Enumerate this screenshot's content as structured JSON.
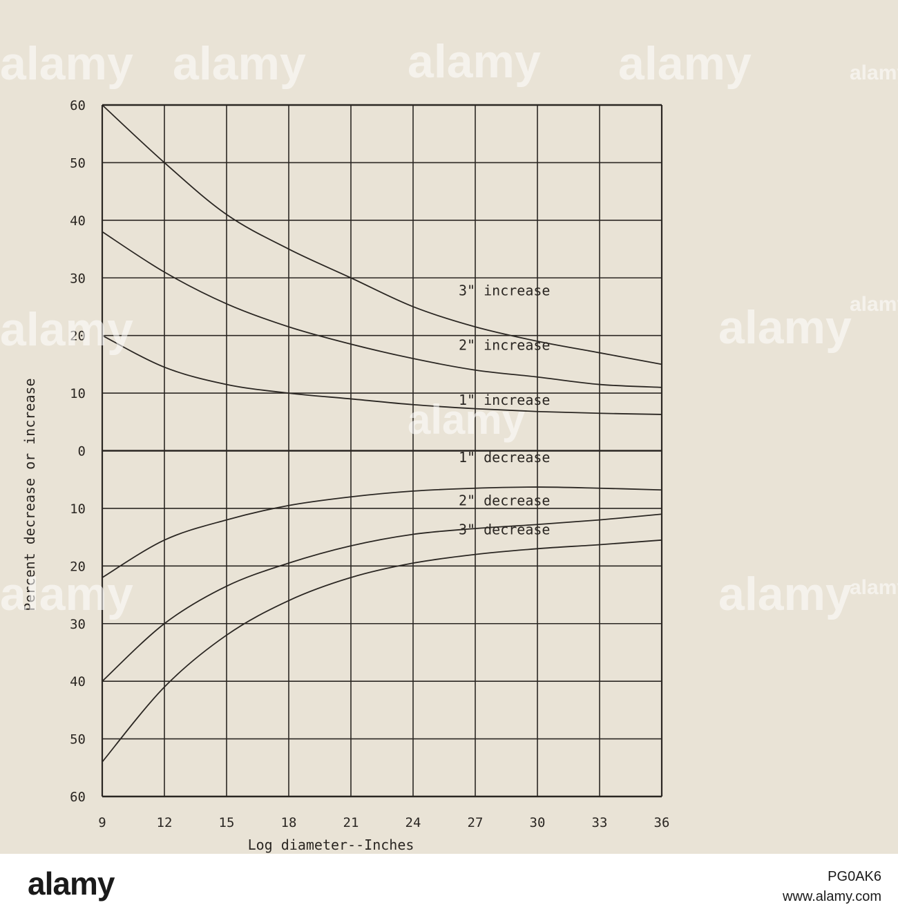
{
  "chart_data": {
    "type": "line",
    "xlabel": "Log diameter--Inches",
    "ylabel": "Percent decrease or increase",
    "x_ticks": [
      "9",
      "12",
      "15",
      "18",
      "21",
      "24",
      "27",
      "30",
      "33",
      "36"
    ],
    "y_ticks_upper": [
      "60",
      "50",
      "40",
      "30",
      "20",
      "10",
      "0"
    ],
    "y_ticks_lower": [
      "10",
      "20",
      "30",
      "40",
      "50",
      "60"
    ],
    "xlim": [
      9,
      36
    ],
    "ylim": [
      -60,
      60
    ],
    "grid": true,
    "series": [
      {
        "name": "3\" increase",
        "x": [
          9,
          12,
          15,
          18,
          21,
          24,
          27,
          30,
          33,
          36
        ],
        "y": [
          60,
          50,
          41,
          35,
          30,
          25,
          21.5,
          19,
          17,
          15
        ]
      },
      {
        "name": "2\" increase",
        "x": [
          9,
          12,
          15,
          18,
          21,
          24,
          27,
          30,
          33,
          36
        ],
        "y": [
          38,
          31,
          25.5,
          21.5,
          18.5,
          16,
          14,
          12.8,
          11.5,
          11
        ]
      },
      {
        "name": "1\" increase",
        "x": [
          9,
          12,
          15,
          18,
          21,
          24,
          27,
          30,
          33,
          36
        ],
        "y": [
          20,
          14.5,
          11.5,
          10,
          9,
          8,
          7.3,
          6.8,
          6.5,
          6.3
        ]
      },
      {
        "name": "1\" decrease",
        "x": [
          9,
          12,
          15,
          18,
          21,
          24,
          27,
          30,
          33,
          36
        ],
        "y": [
          -22,
          -15.5,
          -12,
          -9.5,
          -8,
          -7,
          -6.5,
          -6.3,
          -6.5,
          -6.8
        ]
      },
      {
        "name": "2\" decrease",
        "x": [
          9,
          12,
          15,
          18,
          21,
          24,
          27,
          30,
          33,
          36
        ],
        "y": [
          -40,
          -30,
          -23.5,
          -19.5,
          -16.5,
          -14.5,
          -13.5,
          -12.8,
          -12,
          -11
        ]
      },
      {
        "name": "3\" decrease",
        "x": [
          9,
          12,
          15,
          18,
          21,
          24,
          27,
          30,
          33,
          36
        ],
        "y": [
          -54,
          -41,
          -32,
          -26,
          -22,
          -19.5,
          -18,
          -17,
          -16.3,
          -15.5
        ]
      }
    ],
    "label_series": [
      {
        "text": "3\" increase",
        "x": 26.2,
        "y": 27
      },
      {
        "text": "2\" increase",
        "x": 26.2,
        "y": 17.5
      },
      {
        "text": "1\" increase",
        "x": 26.2,
        "y": 8
      },
      {
        "text": "1\" decrease",
        "x": 26.2,
        "y": -2
      },
      {
        "text": "2\" decrease",
        "x": 26.2,
        "y": -9.5
      },
      {
        "text": "3\" decrease",
        "x": 26.2,
        "y": -14.5
      }
    ]
  },
  "watermark": {
    "text": "alamy",
    "color": "#ffffff"
  },
  "footer": {
    "logo": "alamy",
    "image_code": "PG0AK6",
    "site": "www.alamy.com"
  },
  "colors": {
    "paper": "#e9e3d6",
    "ink": "#2a2622"
  }
}
